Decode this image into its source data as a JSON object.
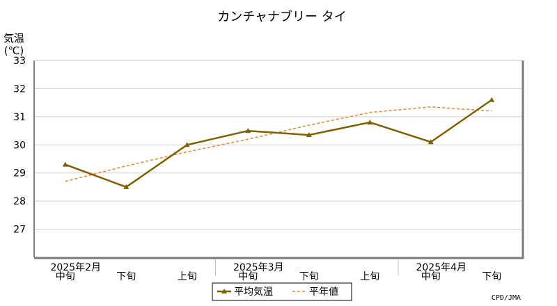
{
  "chart_data": {
    "type": "line",
    "title": "カンチャナブリー タイ",
    "ylabel_line1": "気温",
    "ylabel_line2": "(℃)",
    "ylim": [
      26,
      33
    ],
    "yticks": [
      27,
      28,
      29,
      30,
      31,
      32,
      33
    ],
    "categories": [
      "2025年2月 中旬",
      "2025年2月 下旬",
      "2025年3月 上旬",
      "2025年3月 中旬",
      "2025年3月 下旬",
      "2025年4月 上旬",
      "2025年4月 中旬",
      "2025年4月 下旬"
    ],
    "dekad_labels": [
      "中旬",
      "下旬",
      "上旬",
      "中旬",
      "下旬",
      "上旬",
      "中旬",
      "下旬"
    ],
    "month_labels": [
      {
        "label": "2025年2月",
        "at_index": 0
      },
      {
        "label": "2025年3月",
        "at_index": 3
      },
      {
        "label": "2025年4月",
        "at_index": 6
      }
    ],
    "series": [
      {
        "name": "平均気温",
        "style": "solid-triangle",
        "color": "#7f6000",
        "values": [
          29.3,
          28.5,
          30.0,
          30.5,
          30.35,
          30.8,
          30.1,
          31.6
        ]
      },
      {
        "name": "平年値",
        "style": "dashed",
        "color": "#f08020",
        "values": [
          28.7,
          29.25,
          29.75,
          30.2,
          30.7,
          31.15,
          31.35,
          31.2
        ]
      }
    ],
    "legend": {
      "position": "bottom-center"
    },
    "grid": true
  },
  "credit": "CPD/JMA"
}
